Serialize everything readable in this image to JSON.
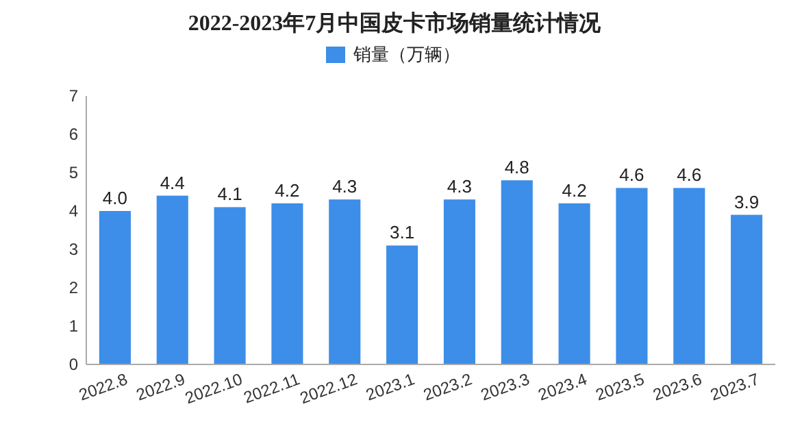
{
  "chart_data": {
    "type": "bar",
    "title": "2022-2023年7月中国皮卡市场销量统计情况",
    "categories": [
      "2022.8",
      "2022.9",
      "2022.10",
      "2022.11",
      "2022.12",
      "2023.1",
      "2023.2",
      "2023.3",
      "2023.4",
      "2023.5",
      "2023.6",
      "2023.7"
    ],
    "series": [
      {
        "name": "销量（万辆）",
        "color": "#3d8ee8",
        "values": [
          4.0,
          4.4,
          4.1,
          4.2,
          4.3,
          3.1,
          4.3,
          4.8,
          4.2,
          4.6,
          4.6,
          3.9
        ],
        "value_labels": [
          "4.0",
          "4.4",
          "4.1",
          "4.2",
          "4.3",
          "3.1",
          "4.3",
          "4.8",
          "4.2",
          "4.6",
          "4.6",
          "3.9"
        ]
      }
    ],
    "ylim": [
      0,
      7
    ],
    "yticks": [
      0,
      1,
      2,
      3,
      4,
      5,
      6,
      7
    ],
    "legend": "top"
  }
}
